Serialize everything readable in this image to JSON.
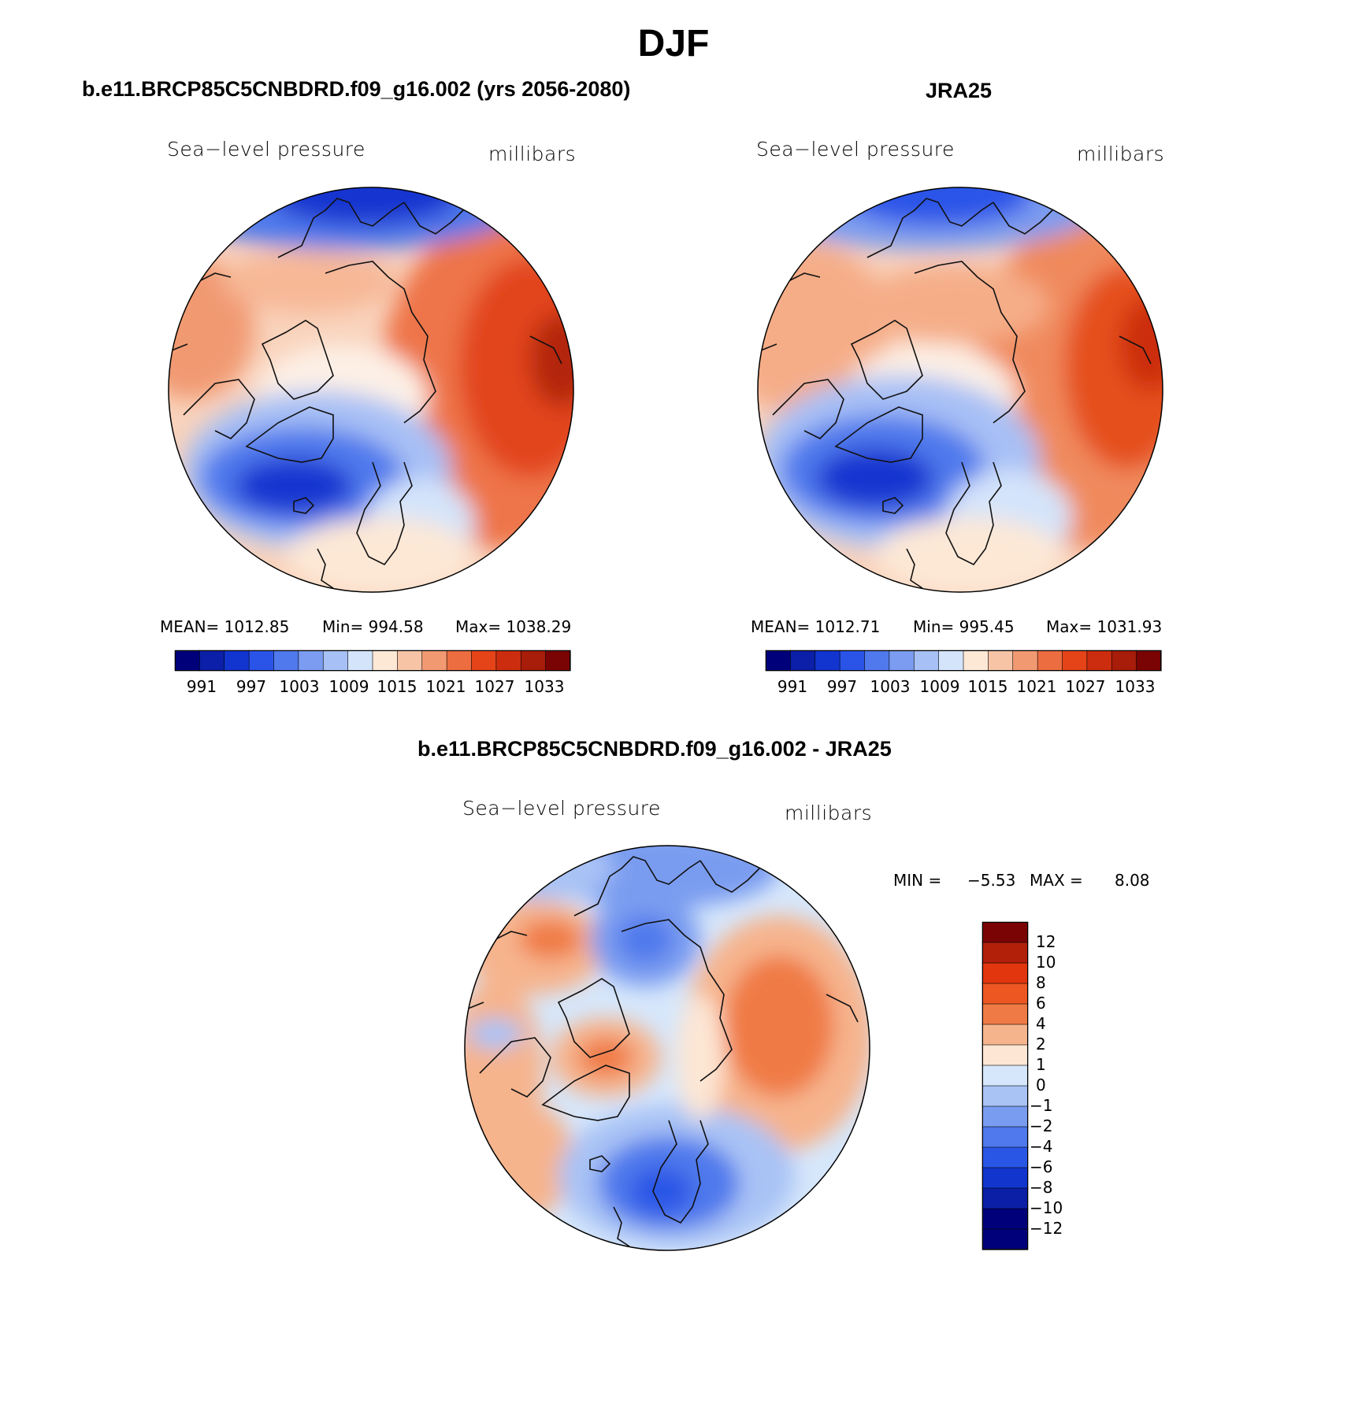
{
  "title": "DJF",
  "panels": [
    {
      "id": "model",
      "title": "b.e11.BRCP85C5CNBDRD.f09_g16.002 (yrs 2056-2080)",
      "variable": "Sea−level pressure",
      "units": "millibars",
      "stats": {
        "mean": "MEAN= 1012.85",
        "min": "Min= 994.58",
        "max": "Max= 1038.29"
      }
    },
    {
      "id": "obs",
      "title": "JRA25",
      "variable": "Sea−level pressure",
      "units": "millibars",
      "stats": {
        "mean": "MEAN= 1012.71",
        "min": "Min= 995.45",
        "max": "Max= 1031.93"
      }
    },
    {
      "id": "diff",
      "title": "b.e11.BRCP85C5CNBDRD.f09_g16.002 - JRA25",
      "variable": "Sea−level pressure",
      "units": "millibars",
      "stats": {
        "min_label": "MIN =",
        "min_value": "−5.53",
        "max_label": "MAX =",
        "max_value": "8.08"
      }
    }
  ],
  "colorbar_abs": {
    "colors": [
      "#00007a",
      "#0b1fa8",
      "#1235d0",
      "#2a54e8",
      "#4f79ec",
      "#7b9cf0",
      "#a7c0f5",
      "#d4e4fb",
      "#fde8d6",
      "#f7c4a6",
      "#f19a72",
      "#ec6d40",
      "#e54419",
      "#cc2d0e",
      "#a81c0a",
      "#7a0303"
    ],
    "ticks": [
      "991",
      "997",
      "1003",
      "1009",
      "1015",
      "1021",
      "1027",
      "1033"
    ]
  },
  "colorbar_diff": {
    "colors": [
      "#7a0303",
      "#b3200a",
      "#e2360f",
      "#ed5722",
      "#f07a45",
      "#f6b48d",
      "#fde6d4",
      "#d6e7fb",
      "#a9c3f5",
      "#7a9cf0",
      "#4f79ec",
      "#2a56e6",
      "#1235cd",
      "#0a1fa5",
      "#00007a"
    ],
    "ticks": [
      "12",
      "10",
      "8",
      "6",
      "4",
      "2",
      "1",
      "0",
      "−1",
      "−2",
      "−4",
      "−6",
      "−8",
      "−10",
      "−12"
    ]
  }
}
